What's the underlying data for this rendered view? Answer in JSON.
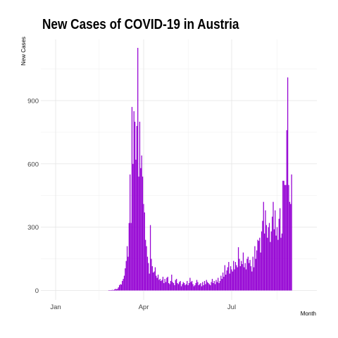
{
  "chart_data": {
    "type": "bar",
    "title": "New Cases of COVID-19 in Austria",
    "xlabel": "Month",
    "ylabel": "New Cases",
    "x_tick_labels": [
      "Jan",
      "Apr",
      "Jul"
    ],
    "y_ticks": [
      0,
      300,
      600,
      900
    ],
    "ylim": [
      -45,
      1190
    ],
    "grid": true,
    "legend": "none",
    "colors": {
      "bar": "#9400D3",
      "grid_major": "#e4e4e4",
      "grid_minor": "#f0f0f0"
    },
    "x_start": "2020-02-25",
    "values": [
      1,
      1,
      1,
      2,
      3,
      2,
      5,
      8,
      6,
      8,
      15,
      25,
      30,
      28,
      45,
      55,
      70,
      105,
      140,
      210,
      160,
      320,
      550,
      320,
      870,
      600,
      850,
      800,
      620,
      780,
      1150,
      540,
      800,
      580,
      640,
      540,
      410,
      370,
      240,
      210,
      160,
      130,
      80,
      310,
      150,
      115,
      85,
      90,
      110,
      70,
      60,
      75,
      50,
      55,
      45,
      50,
      65,
      35,
      55,
      40,
      60,
      65,
      35,
      30,
      45,
      75,
      40,
      35,
      25,
      50,
      55,
      35,
      30,
      40,
      45,
      20,
      30,
      40,
      35,
      25,
      30,
      45,
      25,
      35,
      60,
      40,
      45,
      30,
      20,
      25,
      35,
      50,
      40,
      25,
      30,
      35,
      20,
      40,
      25,
      45,
      30,
      50,
      40,
      35,
      30,
      25,
      40,
      55,
      35,
      45,
      30,
      50,
      40,
      60,
      35,
      45,
      70,
      55,
      85,
      65,
      120,
      75,
      95,
      110,
      135,
      80,
      115,
      100,
      90,
      140,
      100,
      135,
      120,
      110,
      205,
      150,
      115,
      140,
      125,
      180,
      110,
      130,
      100,
      150,
      160,
      130,
      145,
      115,
      90,
      160,
      110,
      210,
      150,
      190,
      240,
      235,
      250,
      180,
      280,
      330,
      420,
      270,
      380,
      310,
      250,
      300,
      320,
      230,
      280,
      350,
      420,
      290,
      380,
      260,
      300,
      240,
      340,
      390,
      250,
      270,
      520,
      520,
      500,
      500,
      760,
      1010,
      500,
      420,
      410,
      550
    ]
  }
}
